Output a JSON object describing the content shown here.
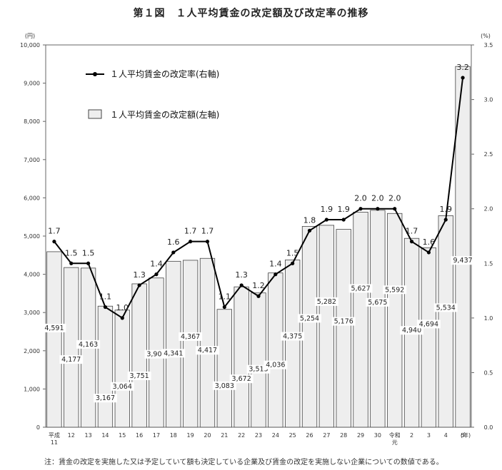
{
  "chart_data": {
    "type": "bar",
    "title": "第１図　１人平均賃金の改定額及び改定率の推移",
    "categories": [
      "平成\n11",
      "12",
      "13",
      "14",
      "15",
      "16",
      "17",
      "18",
      "19",
      "20",
      "21",
      "22",
      "23",
      "24",
      "25",
      "26",
      "27",
      "28",
      "29",
      "30",
      "令和\n元",
      "2",
      "3",
      "4",
      "5"
    ],
    "series": [
      {
        "name": "１人平均賃金の改定額(左軸)",
        "type": "bar",
        "axis": "left",
        "values": [
          4591,
          4177,
          4163,
          3167,
          3064,
          3751,
          3904,
          4341,
          4367,
          4417,
          3083,
          3672,
          3513,
          4036,
          4375,
          5254,
          5282,
          5176,
          5627,
          5675,
          5592,
          4940,
          4694,
          5534,
          9437
        ],
        "labels": [
          "4,591",
          "4,177",
          "4,163",
          "3,167",
          "3,064",
          "3,751",
          "3,904",
          "4,341",
          "4,367",
          "4,417",
          "3,083",
          "3,672",
          "3,513",
          "4,036",
          "4,375",
          "5,254",
          "5,282",
          "5,176",
          "5,627",
          "5,675",
          "5,592",
          "4,940",
          "4,694",
          "5,534",
          "9,437"
        ]
      },
      {
        "name": "１人平均賃金の改定率(右軸)",
        "type": "line",
        "axis": "right",
        "values": [
          1.7,
          1.5,
          1.5,
          1.1,
          1.0,
          1.3,
          1.4,
          1.6,
          1.7,
          1.7,
          1.1,
          1.3,
          1.2,
          1.4,
          1.5,
          1.8,
          1.9,
          1.9,
          2.0,
          2.0,
          2.0,
          1.7,
          1.6,
          1.9,
          3.2
        ],
        "labels": [
          "1.7",
          "1.5",
          "1.5",
          "1.1",
          "1.0",
          "1.3",
          "1.4",
          "1.6",
          "1.7",
          "1.7",
          "1.1",
          "1.3",
          "1.2",
          "1.4",
          "1.5",
          "1.8",
          "1.9",
          "1.9",
          "2.0",
          "2.0",
          "2.0",
          "1.7",
          "1.6",
          "1.9",
          "3.2"
        ]
      }
    ],
    "left_axis": {
      "unit": "(円)",
      "range": [
        0,
        10000
      ],
      "ticks": [
        "0",
        "1,000",
        "2,000",
        "3,000",
        "4,000",
        "5,000",
        "6,000",
        "7,000",
        "8,000",
        "9,000",
        "10,000"
      ]
    },
    "right_axis": {
      "unit": "(%)",
      "range": [
        0,
        3.5
      ],
      "ticks": [
        "0.0",
        "0.5",
        "1.0",
        "1.5",
        "2.0",
        "2.5",
        "3.0",
        "3.5"
      ]
    },
    "x_unit": "(年)",
    "grid": false,
    "legend_position": "top-left",
    "colors": {
      "bar_fill": "#eeeeee",
      "bar_stroke": "#444444",
      "line": "#000000"
    }
  },
  "footnote": "注：賃金の改定を実施した又は予定していて額も決定している企業及び賃金の改定を実施しない企業についての数値である。"
}
